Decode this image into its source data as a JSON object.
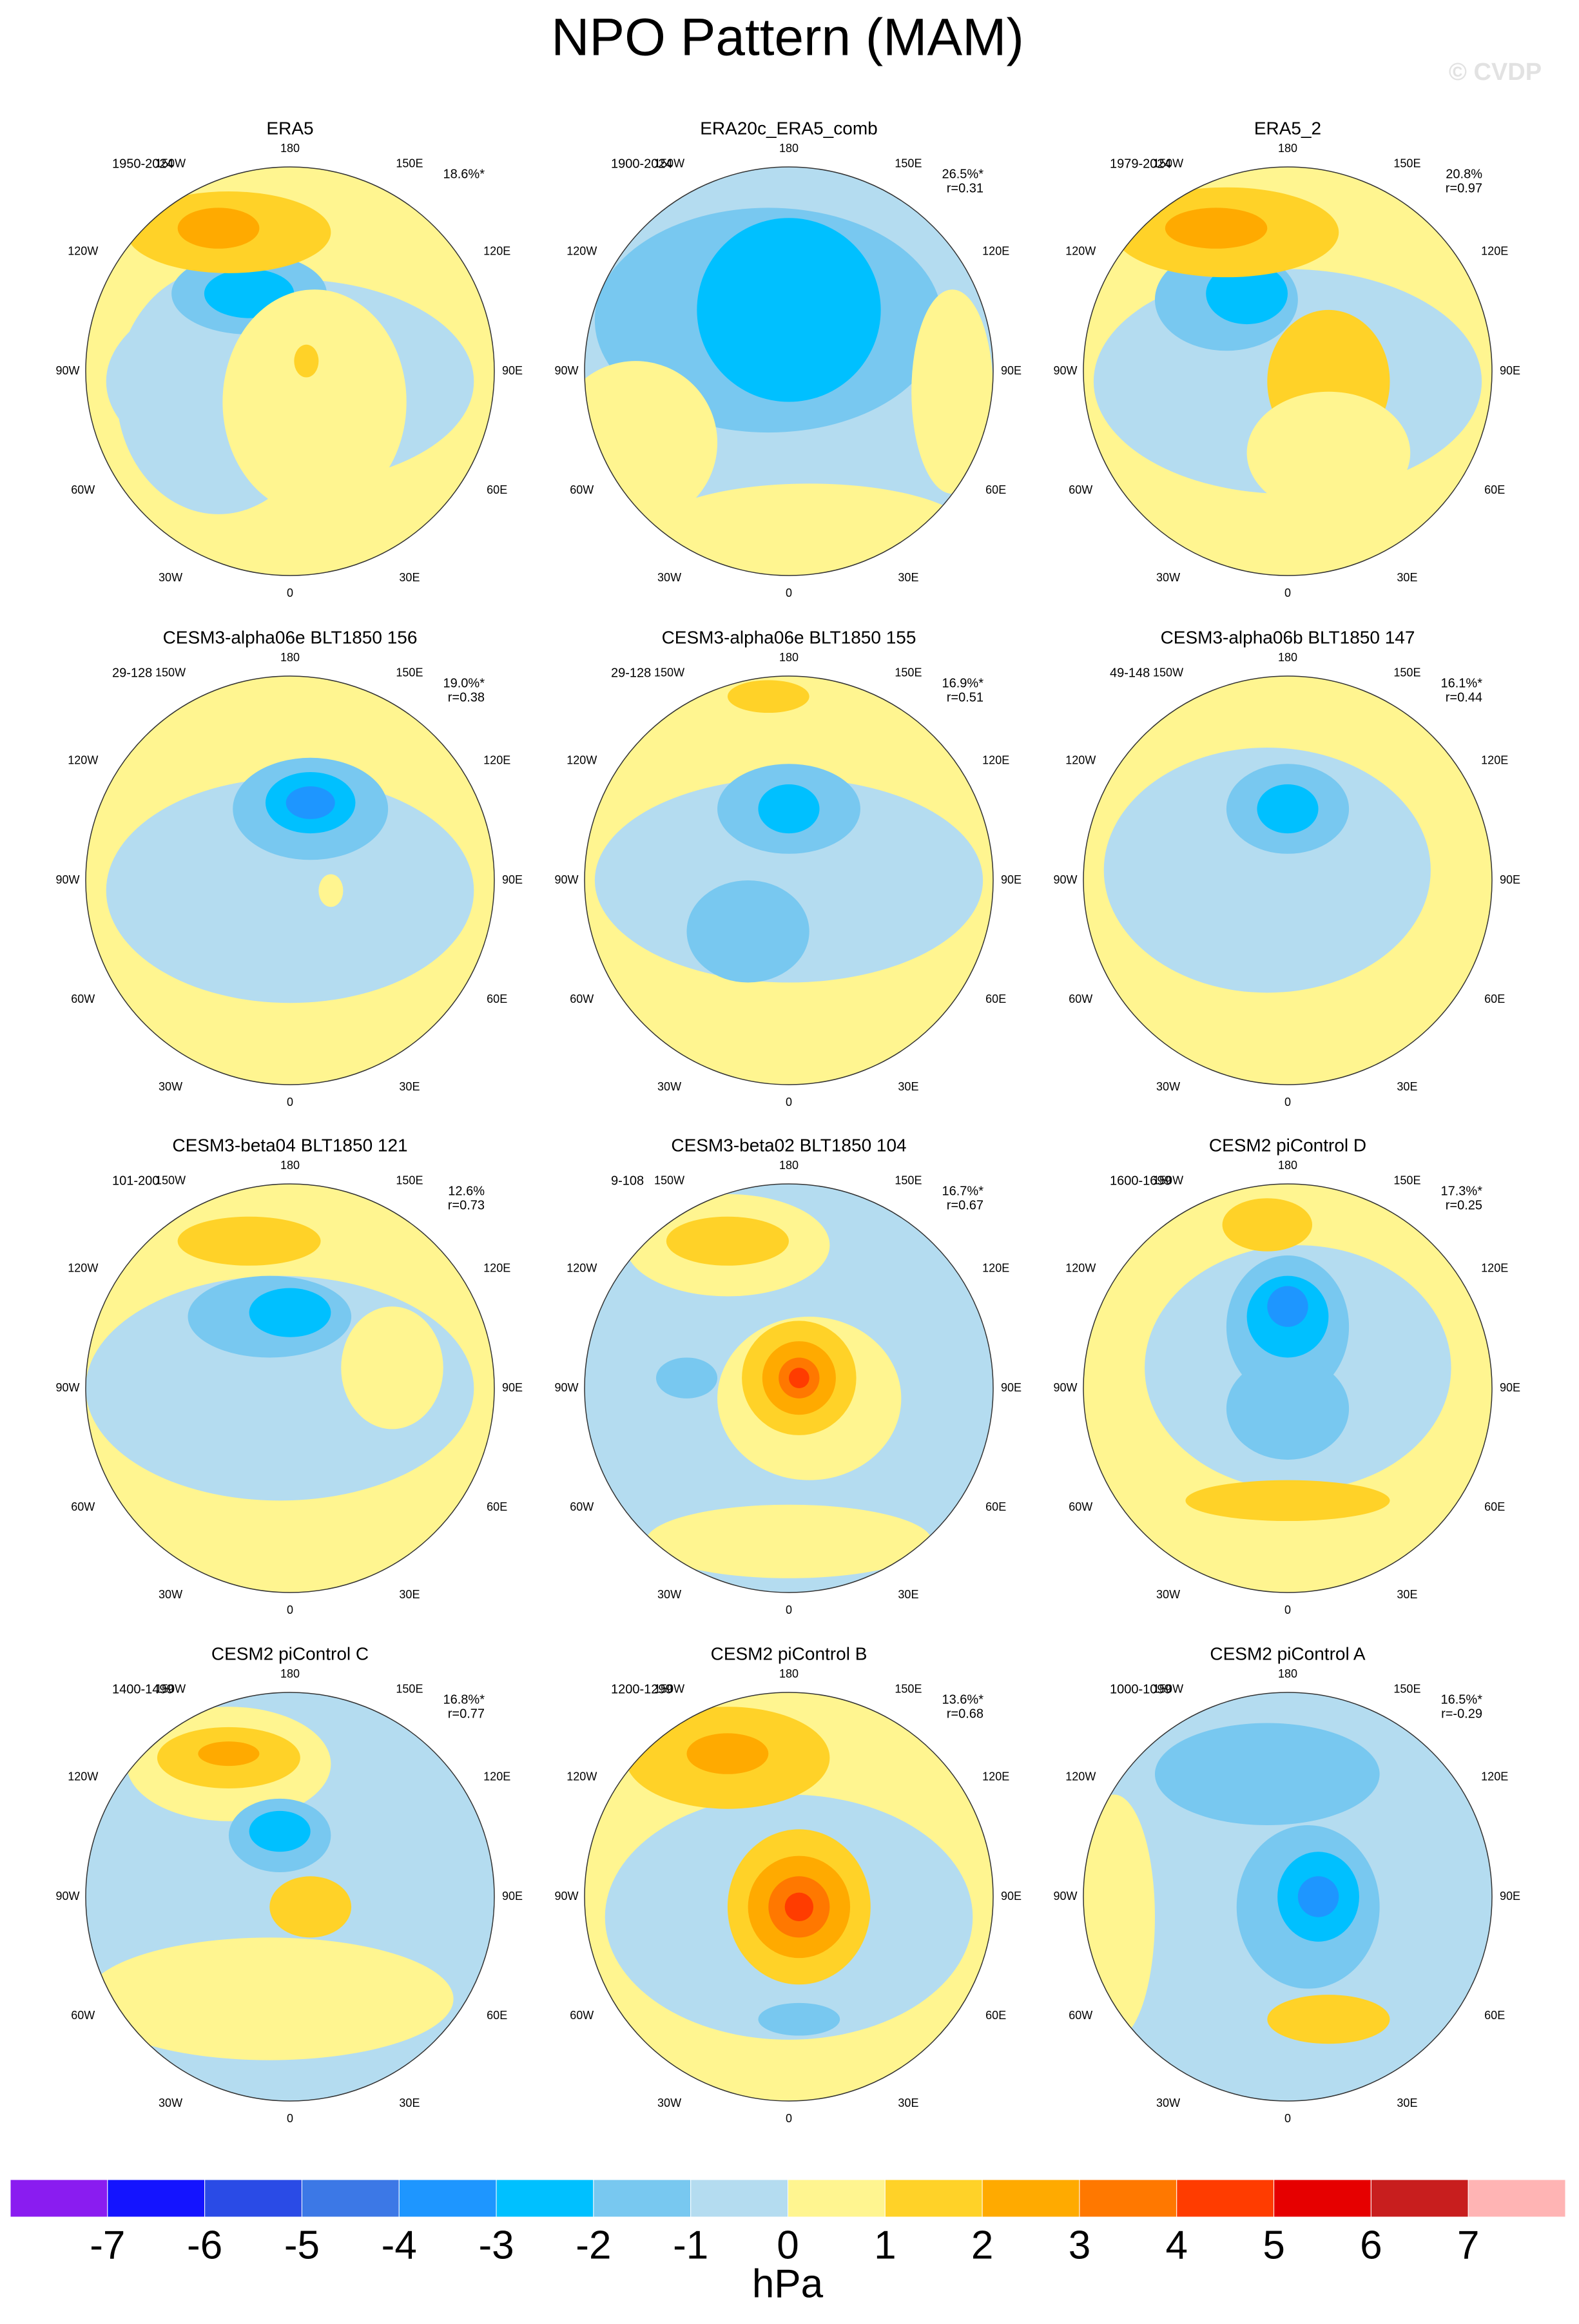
{
  "title": "NPO Pattern (MAM)",
  "watermark": "© CVDP",
  "lon_labels": [
    "180",
    "150E",
    "120E",
    "90E",
    "60E",
    "30E",
    "0",
    "30W",
    "60W",
    "90W",
    "120W",
    "150W"
  ],
  "panels": [
    {
      "title": "ERA5",
      "period": "1950-2024",
      "percent": "18.6%*"
    },
    {
      "title": "ERA20c_ERA5_comb",
      "period": "1900-2024",
      "percent": "26.5%*",
      "r": "r=0.31"
    },
    {
      "title": "ERA5_2",
      "period": "1979-2024",
      "percent": "20.8%",
      "r": "r=0.97"
    },
    {
      "title": "CESM3-alpha06e BLT1850 156",
      "period": "29-128",
      "percent": "19.0%*",
      "r": "r=0.38"
    },
    {
      "title": "CESM3-alpha06e BLT1850 155",
      "period": "29-128",
      "percent": "16.9%*",
      "r": "r=0.51"
    },
    {
      "title": "CESM3-alpha06b BLT1850 147",
      "period": "49-148",
      "percent": "16.1%*",
      "r": "r=0.44"
    },
    {
      "title": "CESM3-beta04 BLT1850 121",
      "period": "101-200",
      "percent": "12.6%",
      "r": "r=0.73"
    },
    {
      "title": "CESM3-beta02 BLT1850 104",
      "period": "9-108",
      "percent": "16.7%*",
      "r": "r=0.67"
    },
    {
      "title": "CESM2 piControl D",
      "period": "1600-1699",
      "percent": "17.3%*",
      "r": "r=0.25"
    },
    {
      "title": "CESM2 piControl C",
      "period": "1400-1499",
      "percent": "16.8%*",
      "r": "r=0.77"
    },
    {
      "title": "CESM2 piControl B",
      "period": "1200-1299",
      "percent": "13.6%*",
      "r": "r=0.68"
    },
    {
      "title": "CESM2 piControl A",
      "period": "1000-1099",
      "percent": "16.5%*",
      "r": "r=-0.29"
    }
  ],
  "colorbar": {
    "levels": [
      -7,
      -6,
      -5,
      -4,
      -3,
      -2,
      -1,
      0,
      1,
      2,
      3,
      4,
      5,
      6,
      7
    ],
    "colors": [
      "#8a1cf0",
      "#1414ff",
      "#2a4be6",
      "#3c78e6",
      "#1e96ff",
      "#00c0ff",
      "#78c8f0",
      "#b4dcf0",
      "#fff590",
      "#ffd228",
      "#ffaa00",
      "#ff7800",
      "#ff3c00",
      "#e60000",
      "#c81e1e",
      "#ffb4b4"
    ],
    "unit": "hPa"
  }
}
